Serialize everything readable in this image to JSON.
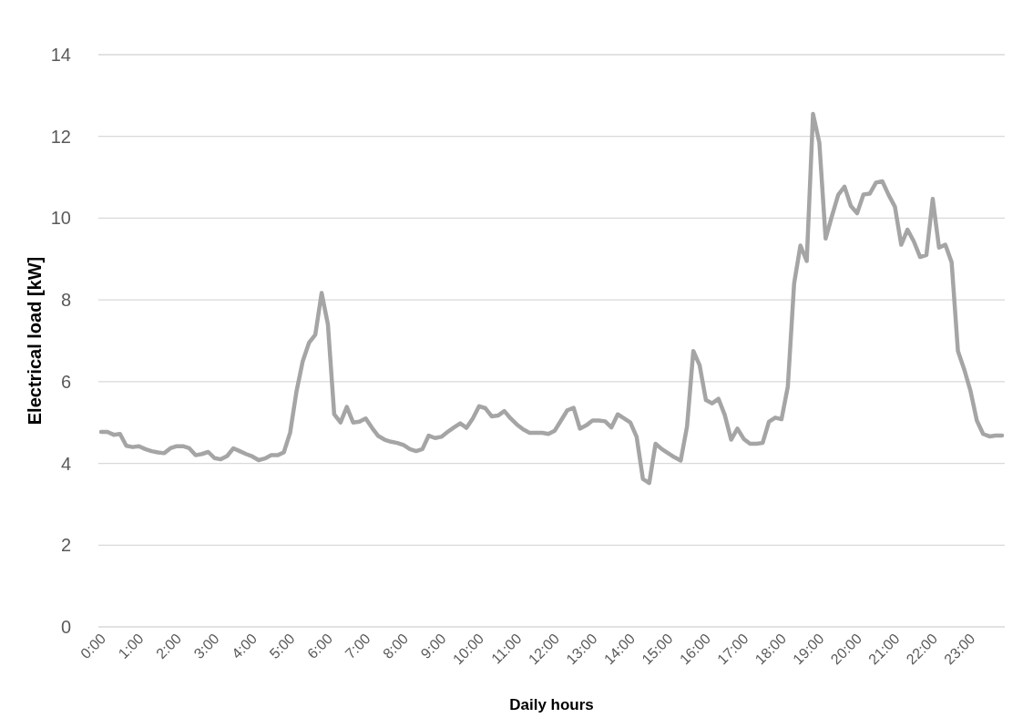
{
  "chart_data": {
    "type": "line",
    "xlabel": "Daily hours",
    "ylabel": "Electrical load [kW]",
    "categories": [
      "0:00",
      null,
      null,
      null,
      null,
      null,
      "1:00",
      null,
      null,
      null,
      null,
      null,
      "2:00",
      null,
      null,
      null,
      null,
      null,
      "3:00",
      null,
      null,
      null,
      null,
      null,
      "4:00",
      null,
      null,
      null,
      null,
      null,
      "5:00",
      null,
      null,
      null,
      null,
      null,
      "6:00",
      null,
      null,
      null,
      null,
      null,
      "7:00",
      null,
      null,
      null,
      null,
      null,
      "8:00",
      null,
      null,
      null,
      null,
      null,
      "9:00",
      null,
      null,
      null,
      null,
      null,
      "10:00",
      null,
      null,
      null,
      null,
      null,
      "11:00",
      null,
      null,
      null,
      null,
      null,
      "12:00",
      null,
      null,
      null,
      null,
      null,
      "13:00",
      null,
      null,
      null,
      null,
      null,
      "14:00",
      null,
      null,
      null,
      null,
      null,
      "15:00",
      null,
      null,
      null,
      null,
      null,
      "16:00",
      null,
      null,
      null,
      null,
      null,
      "17:00",
      null,
      null,
      null,
      null,
      null,
      "18:00",
      null,
      null,
      null,
      null,
      null,
      "19:00",
      null,
      null,
      null,
      null,
      null,
      "20:00",
      null,
      null,
      null,
      null,
      null,
      "21:00",
      null,
      null,
      null,
      null,
      null,
      "22:00",
      null,
      null,
      null,
      null,
      null,
      "23:00",
      null,
      null,
      null,
      null,
      null
    ],
    "series": [
      {
        "color": "#a5a5a5",
        "values": [
          4.77,
          4.77,
          4.7,
          4.72,
          4.43,
          4.4,
          4.42,
          4.35,
          4.3,
          4.27,
          4.25,
          4.37,
          4.42,
          4.42,
          4.37,
          4.2,
          4.23,
          4.28,
          4.13,
          4.1,
          4.18,
          4.37,
          4.3,
          4.23,
          4.17,
          4.08,
          4.12,
          4.2,
          4.2,
          4.27,
          4.75,
          5.75,
          6.5,
          6.95,
          7.15,
          8.17,
          7.4,
          5.2,
          5.0,
          5.38,
          5.0,
          5.02,
          5.1,
          4.87,
          4.67,
          4.58,
          4.53,
          4.5,
          4.45,
          4.35,
          4.3,
          4.35,
          4.68,
          4.62,
          4.65,
          4.77,
          4.88,
          4.98,
          4.87,
          5.1,
          5.4,
          5.35,
          5.15,
          5.17,
          5.28,
          5.1,
          4.95,
          4.83,
          4.75,
          4.75,
          4.75,
          4.72,
          4.8,
          5.05,
          5.3,
          5.36,
          4.85,
          4.93,
          5.05,
          5.05,
          5.03,
          4.88,
          5.2,
          5.1,
          5.0,
          4.65,
          3.62,
          3.52,
          4.48,
          4.35,
          4.25,
          4.15,
          4.07,
          4.9,
          6.75,
          6.4,
          5.55,
          5.47,
          5.58,
          5.18,
          4.58,
          4.85,
          4.6,
          4.48,
          4.48,
          4.5,
          5.02,
          5.12,
          5.08,
          5.88,
          8.4,
          9.33,
          8.95,
          12.55,
          11.85,
          9.5,
          10.05,
          10.57,
          10.77,
          10.3,
          10.12,
          10.58,
          10.6,
          10.87,
          10.9,
          10.57,
          10.28,
          9.35,
          9.72,
          9.43,
          9.05,
          9.1,
          10.47,
          9.28,
          9.35,
          8.92,
          6.75,
          6.3,
          5.77,
          5.05,
          4.72,
          4.66,
          4.68,
          4.68
        ]
      }
    ],
    "ylim": [
      0,
      14
    ],
    "yticks": [
      0,
      2,
      4,
      6,
      8,
      10,
      12,
      14
    ],
    "grid": "y",
    "marker": "none",
    "line_style": "solid"
  }
}
